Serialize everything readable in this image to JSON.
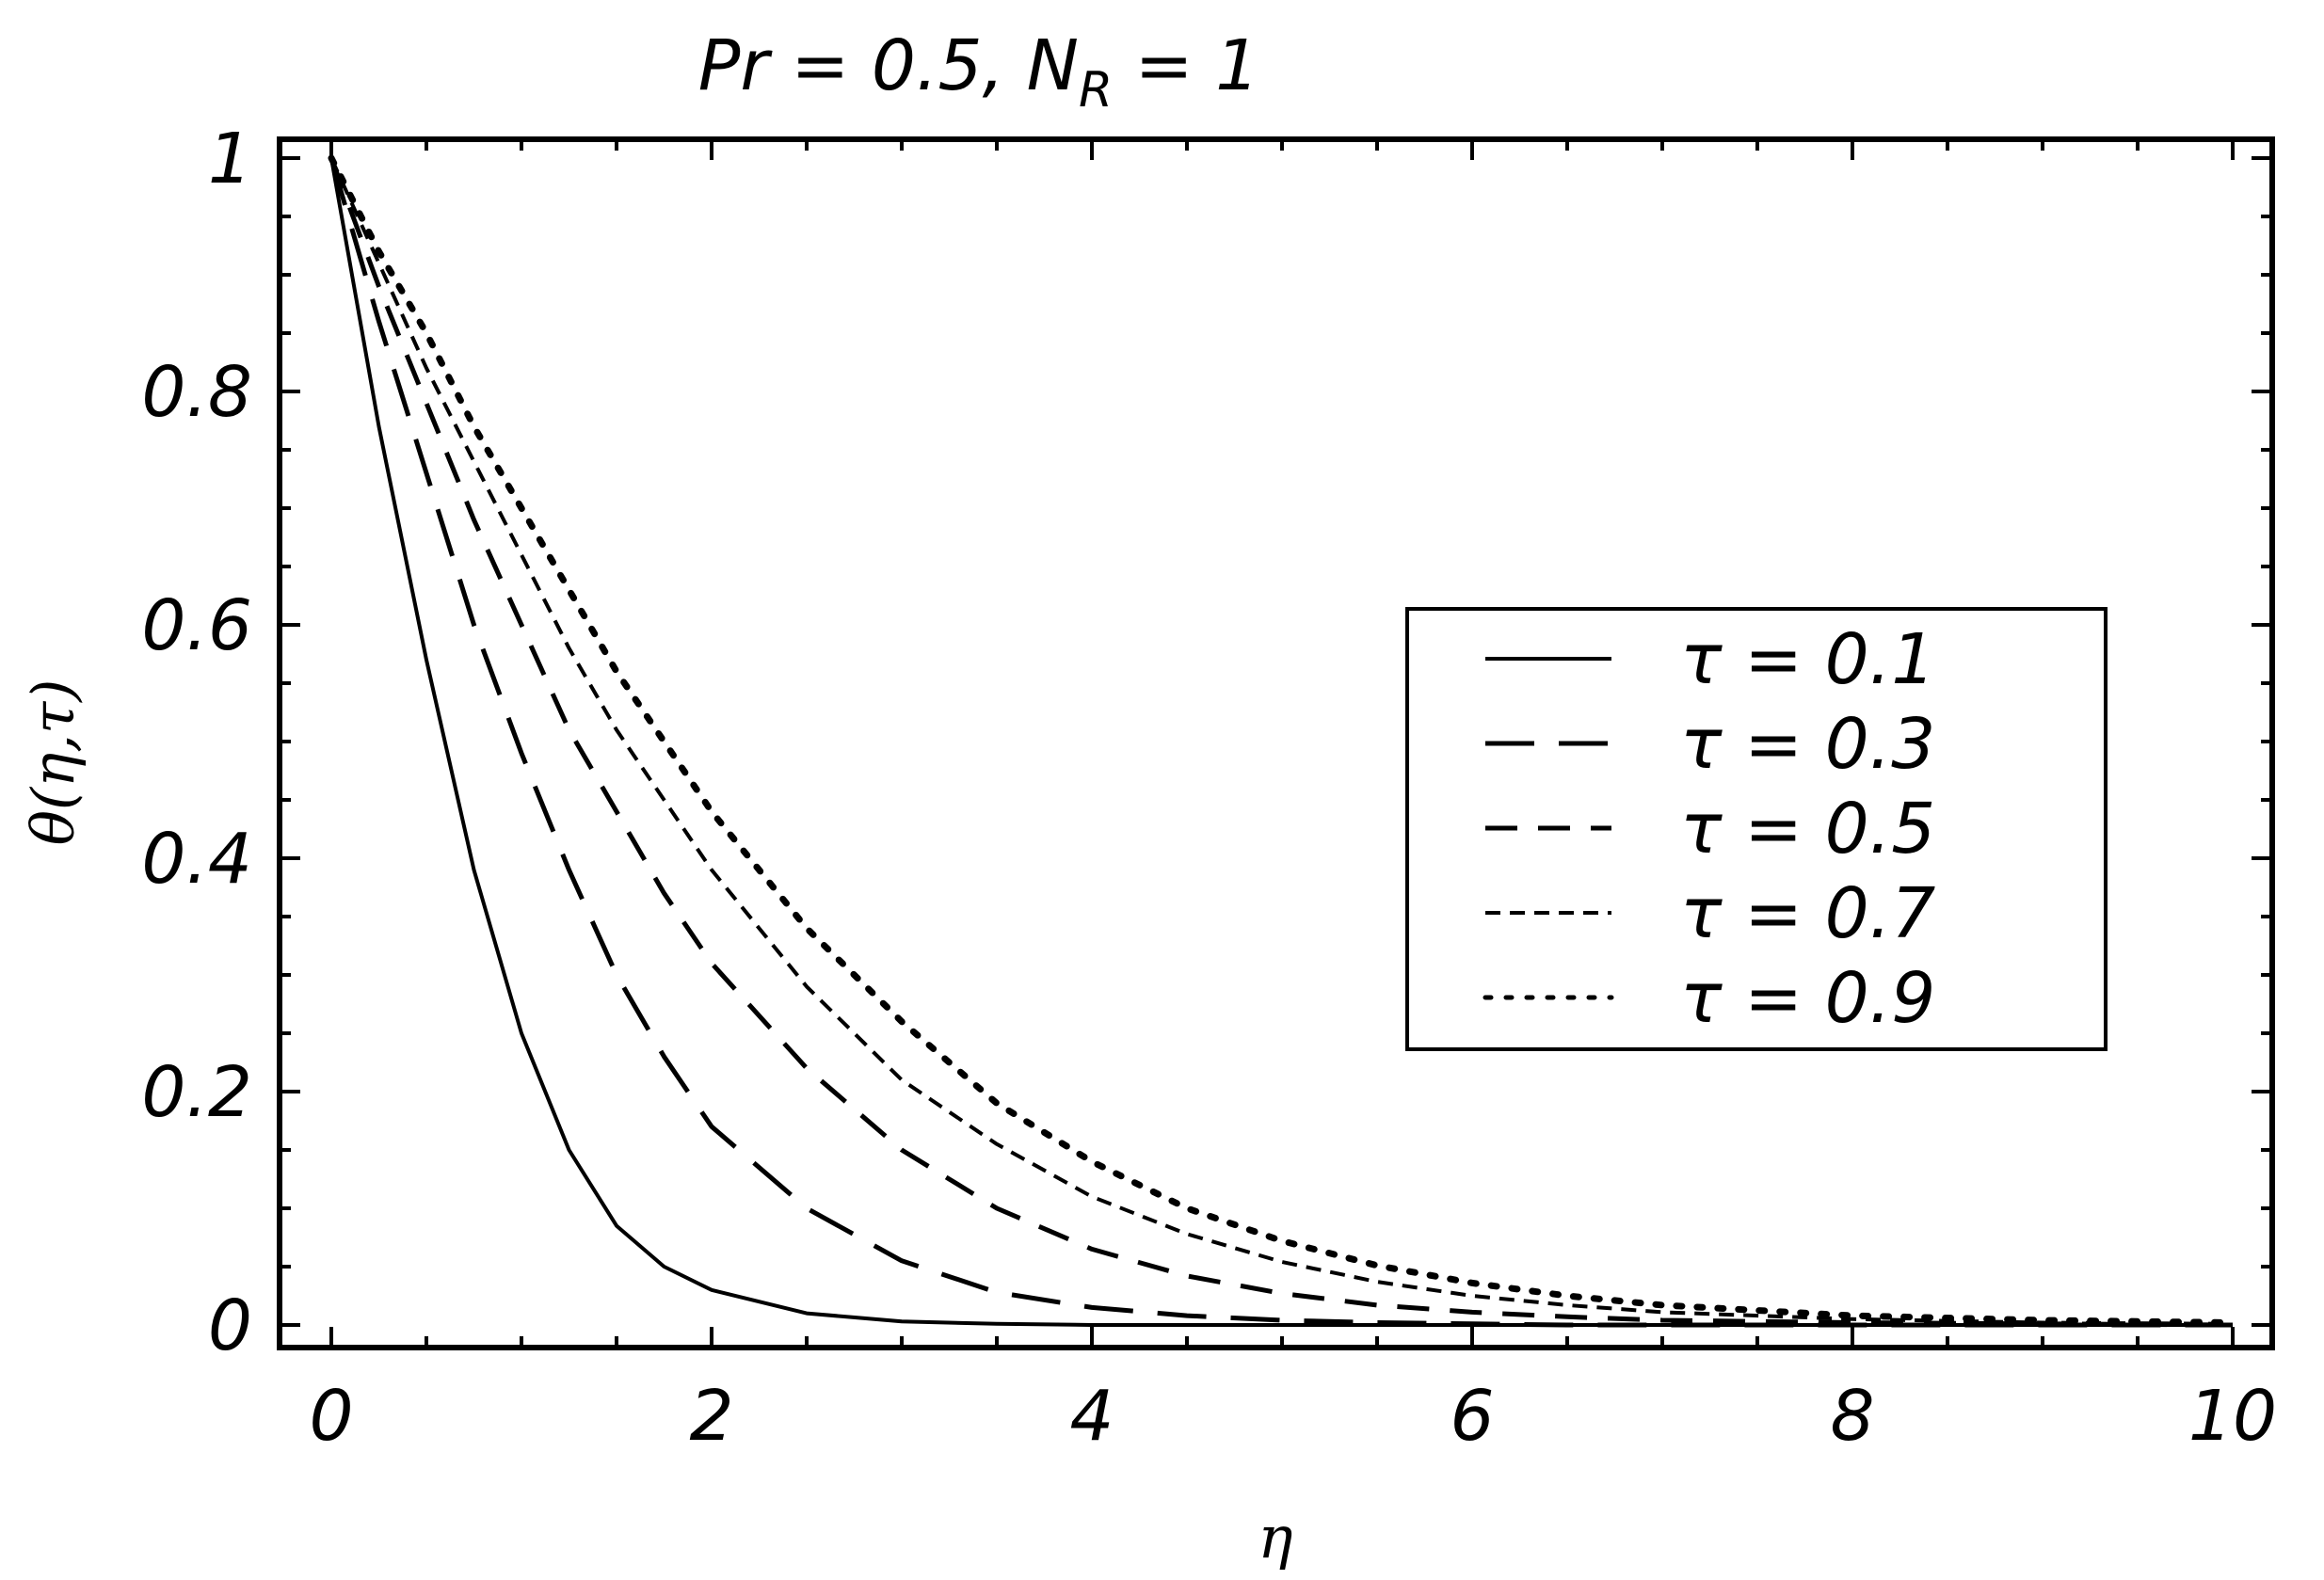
{
  "chart_data": {
    "type": "line",
    "title": "Pr = 0.5, N",
    "title_subscript": "R",
    "title_suffix": " = 1",
    "xlabel": "η",
    "ylabel": "θ(η,τ)",
    "xlim": [
      0,
      10
    ],
    "ylim": [
      0,
      1
    ],
    "x_ticks": [
      0,
      2,
      4,
      6,
      8,
      10
    ],
    "x_tick_labels": [
      "0",
      "2",
      "4",
      "6",
      "8",
      "10"
    ],
    "y_ticks": [
      0,
      0.2,
      0.4,
      0.6,
      0.8,
      1
    ],
    "y_tick_labels": [
      "0",
      "0.2",
      "0.4",
      "0.6",
      "0.8",
      "1"
    ],
    "grid": false,
    "legend_position": "right",
    "x": [
      0,
      0.25,
      0.5,
      0.75,
      1,
      1.25,
      1.5,
      1.75,
      2,
      2.5,
      3,
      3.5,
      4,
      4.5,
      5,
      5.5,
      6,
      6.5,
      7,
      8,
      9,
      10
    ],
    "series": [
      {
        "name": "τ = 0.1",
        "style": "solid",
        "values": [
          1,
          0.77,
          0.57,
          0.39,
          0.25,
          0.15,
          0.085,
          0.05,
          0.03,
          0.01,
          0.003,
          0.001,
          0,
          0,
          0,
          0,
          0,
          0,
          0,
          0,
          0,
          0
        ]
      },
      {
        "name": "τ = 0.3",
        "style": "long-dash",
        "values": [
          1,
          0.86,
          0.73,
          0.6,
          0.49,
          0.39,
          0.3,
          0.23,
          0.17,
          0.1,
          0.055,
          0.028,
          0.015,
          0.008,
          0.004,
          0.002,
          0.001,
          0,
          0,
          0,
          0,
          0
        ]
      },
      {
        "name": "τ = 0.5",
        "style": "dash",
        "values": [
          1,
          0.89,
          0.79,
          0.69,
          0.6,
          0.51,
          0.44,
          0.37,
          0.31,
          0.22,
          0.15,
          0.1,
          0.065,
          0.042,
          0.027,
          0.017,
          0.011,
          0.007,
          0.004,
          0.002,
          0.001,
          0
        ]
      },
      {
        "name": "τ = 0.7",
        "style": "short-dash",
        "values": [
          1,
          0.91,
          0.82,
          0.74,
          0.66,
          0.58,
          0.51,
          0.45,
          0.39,
          0.29,
          0.21,
          0.155,
          0.11,
          0.078,
          0.054,
          0.037,
          0.025,
          0.017,
          0.011,
          0.005,
          0.002,
          0.001
        ]
      },
      {
        "name": "τ = 0.9",
        "style": "dotted",
        "values": [
          1,
          0.92,
          0.85,
          0.77,
          0.7,
          0.63,
          0.56,
          0.5,
          0.44,
          0.34,
          0.26,
          0.19,
          0.14,
          0.1,
          0.072,
          0.051,
          0.036,
          0.025,
          0.017,
          0.008,
          0.004,
          0.002
        ]
      }
    ]
  }
}
